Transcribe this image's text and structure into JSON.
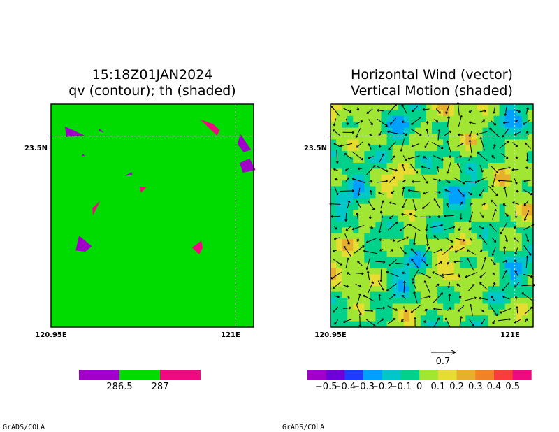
{
  "chart_data": [
    {
      "type": "heatmap",
      "title": "15:18Z01JAN2024",
      "subtitle": "qv (contour); th (shaded)",
      "x_ticks": [
        "120.95E",
        "121E"
      ],
      "y_ticks": [
        "23.5N"
      ],
      "x_tick_values": [
        120.95,
        121.0
      ],
      "y_tick_values": [
        23.5
      ],
      "xlim": [
        120.95,
        121.005
      ],
      "ylim": [
        23.44,
        23.51
      ],
      "grid": true,
      "background_value": 286.75,
      "background_color": "#00dc00",
      "colorbar": {
        "colors": [
          "#a000c8",
          "#00dc00",
          "#f00a82"
        ],
        "labels": [
          "286.5",
          "287"
        ]
      },
      "patches": [
        {
          "level": "low",
          "color": "#a000c8",
          "points": [
            [
              120.9631,
              23.5024
            ],
            [
              120.9643,
              23.5011
            ],
            [
              120.963,
              23.5016
            ]
          ]
        },
        {
          "level": "low",
          "color": "#a000c8",
          "points": [
            [
              120.9538,
              23.503
            ],
            [
              120.9591,
              23.5002
            ],
            [
              120.9542,
              23.4997
            ]
          ]
        },
        {
          "level": "high",
          "color": "#f00a82",
          "points": [
            [
              120.9905,
              23.5052
            ],
            [
              120.995,
              23.5002
            ],
            [
              120.9958,
              23.5018
            ],
            [
              120.994,
              23.5038
            ]
          ]
        },
        {
          "level": "low",
          "color": "#a000c8",
          "points": [
            [
              121.0014,
              23.5006
            ],
            [
              121.0043,
              23.4957
            ],
            [
              121.0023,
              23.4949
            ],
            [
              121.0006,
              23.4975
            ]
          ]
        },
        {
          "level": "low",
          "color": "#a000c8",
          "points": [
            [
              120.9587,
              23.4944
            ],
            [
              120.9592,
              23.4937
            ],
            [
              120.9583,
              23.4937
            ]
          ]
        },
        {
          "level": "low",
          "color": "#a000c8",
          "points": [
            [
              121.0012,
              23.4915
            ],
            [
              121.0039,
              23.4929
            ],
            [
              121.0055,
              23.4893
            ],
            [
              121.0021,
              23.4885
            ]
          ]
        },
        {
          "level": "low",
          "color": "#a000c8",
          "points": [
            [
              120.9701,
              23.4875
            ],
            [
              120.9719,
              23.4887
            ],
            [
              120.9721,
              23.4878
            ]
          ]
        },
        {
          "level": "high",
          "color": "#f00a82",
          "points": [
            [
              120.974,
              23.4841
            ],
            [
              120.9759,
              23.4839
            ],
            [
              120.9744,
              23.4822
            ]
          ]
        },
        {
          "level": "high",
          "color": "#f00a82",
          "points": [
            [
              120.9633,
              23.4796
            ],
            [
              120.9612,
              23.4774
            ],
            [
              120.9614,
              23.4751
            ]
          ]
        },
        {
          "level": "low",
          "color": "#a000c8",
          "points": [
            [
              120.9576,
              23.4687
            ],
            [
              120.9611,
              23.4654
            ],
            [
              120.9593,
              23.4637
            ],
            [
              120.9567,
              23.4641
            ]
          ]
        },
        {
          "level": "high",
          "color": "#f00a82",
          "points": [
            [
              120.9908,
              23.4671
            ],
            [
              120.9912,
              23.465
            ],
            [
              120.9902,
              23.4628
            ],
            [
              120.9883,
              23.465
            ]
          ]
        }
      ]
    },
    {
      "type": "heatmap",
      "title": "Horizontal Wind (vector)",
      "subtitle": "Vertical Motion (shaded)",
      "x_ticks": [
        "120.95E",
        "121E"
      ],
      "y_ticks": [
        "23.5N"
      ],
      "x_tick_values": [
        120.95,
        121.0
      ],
      "y_tick_values": [
        23.5
      ],
      "xlim": [
        120.95,
        121.005
      ],
      "ylim": [
        23.44,
        23.51
      ],
      "grid": true,
      "reference_vector": {
        "label": "0.7",
        "magnitude": 0.7
      },
      "colorbar": {
        "colors": [
          "#a000c8",
          "#6e00dc",
          "#1e3cff",
          "#00a0ff",
          "#00c8c8",
          "#00d28c",
          "#a0e632",
          "#e6dc32",
          "#e6af2d",
          "#f08228",
          "#fa3c3c",
          "#f00a82"
        ],
        "labels": [
          "−0.5",
          "−0.4",
          "−0.3",
          "−0.2",
          "−0.1",
          "0",
          "0.1",
          "0.2",
          "0.3",
          "0.4",
          "0.5"
        ]
      },
      "shading_grid": {
        "nx": 18,
        "ny": 19,
        "cell_values_level_index": "procedural (seed 24)"
      }
    }
  ],
  "credits": [
    "GrADS/COLA",
    "GrADS/COLA"
  ]
}
